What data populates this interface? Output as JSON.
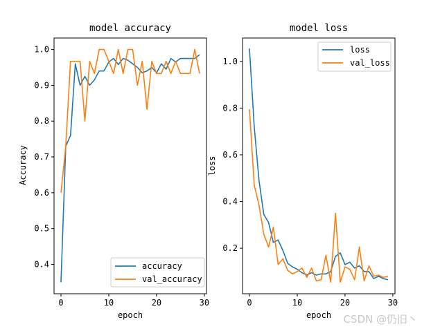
{
  "watermark": "CSDN @仍旧丶",
  "chart_data": [
    {
      "type": "line",
      "title": "model accuracy",
      "xlabel": "epoch",
      "ylabel": "Accuracy",
      "xlim": [
        -1.45,
        30.45
      ],
      "ylim": [
        0.318,
        1.032
      ],
      "xticks": [
        0,
        10,
        20,
        30
      ],
      "yticks": [
        0.4,
        0.5,
        0.6,
        0.7,
        0.8,
        0.9,
        1.0
      ],
      "ytick_labels": [
        "0.4",
        "0.5",
        "0.6",
        "0.7",
        "0.8",
        "0.9",
        "1.0"
      ],
      "grid": false,
      "legend": "lower-right",
      "x": [
        0,
        1,
        2,
        3,
        4,
        5,
        6,
        7,
        8,
        9,
        10,
        11,
        12,
        13,
        14,
        15,
        16,
        17,
        18,
        19,
        20,
        21,
        22,
        23,
        24,
        25,
        26,
        27,
        28,
        29
      ],
      "series": [
        {
          "name": "accuracy",
          "color": "#1f77b4",
          "values": [
            0.35,
            0.73,
            0.76,
            0.96,
            0.9,
            0.925,
            0.9,
            0.915,
            0.94,
            0.94,
            0.965,
            0.975,
            0.958,
            0.975,
            0.97,
            0.96,
            0.95,
            0.935,
            0.94,
            0.95,
            0.935,
            0.96,
            0.945,
            0.975,
            0.965,
            0.975,
            0.975,
            0.975,
            0.975,
            0.985
          ]
        },
        {
          "name": "val_accuracy",
          "color": "#ff7f0e",
          "values": [
            0.6,
            0.73,
            0.967,
            0.967,
            0.967,
            0.8,
            0.967,
            0.933,
            1.0,
            1.0,
            0.967,
            0.933,
            1.0,
            0.933,
            1.0,
            1.0,
            0.9,
            0.967,
            0.833,
            0.967,
            0.933,
            0.933,
            0.967,
            0.933,
            0.967,
            0.933,
            0.933,
            0.933,
            1.0,
            0.933
          ]
        }
      ]
    },
    {
      "type": "line",
      "title": "model loss",
      "xlabel": "epoch",
      "ylabel": "loss",
      "xlim": [
        -1.45,
        30.45
      ],
      "ylim": [
        0.005,
        1.1
      ],
      "xticks": [
        0,
        10,
        20,
        30
      ],
      "yticks": [
        0.2,
        0.4,
        0.6,
        0.8,
        1.0
      ],
      "ytick_labels": [
        "0.2",
        "0.4",
        "0.6",
        "0.8",
        "1.0"
      ],
      "grid": false,
      "legend": "upper-right",
      "x": [
        0,
        1,
        2,
        3,
        4,
        5,
        6,
        7,
        8,
        9,
        10,
        11,
        12,
        13,
        14,
        15,
        16,
        17,
        18,
        19,
        20,
        21,
        22,
        23,
        24,
        25,
        26,
        27,
        28,
        29
      ],
      "series": [
        {
          "name": "loss",
          "color": "#1f77b4",
          "values": [
            1.055,
            0.72,
            0.49,
            0.345,
            0.31,
            0.225,
            0.235,
            0.19,
            0.135,
            0.12,
            0.11,
            0.095,
            0.085,
            0.095,
            0.085,
            0.09,
            0.09,
            0.1,
            0.165,
            0.18,
            0.13,
            0.14,
            0.115,
            0.125,
            0.1,
            0.1,
            0.07,
            0.08,
            0.07,
            0.065
          ]
        },
        {
          "name": "val_loss",
          "color": "#ff7f0e",
          "values": [
            0.795,
            0.47,
            0.385,
            0.26,
            0.205,
            0.29,
            0.13,
            0.155,
            0.105,
            0.09,
            0.1,
            0.115,
            0.075,
            0.115,
            0.06,
            0.065,
            0.17,
            0.055,
            0.35,
            0.055,
            0.12,
            0.11,
            0.065,
            0.205,
            0.06,
            0.125,
            0.08,
            0.085,
            0.075,
            0.08
          ]
        }
      ]
    }
  ]
}
